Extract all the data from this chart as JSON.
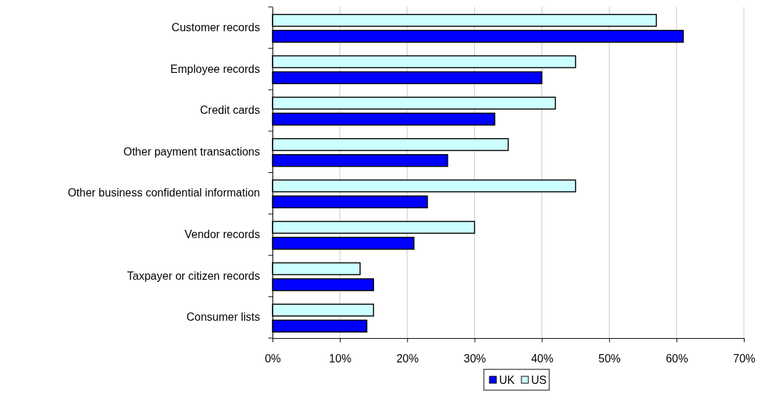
{
  "chart_data": {
    "type": "bar",
    "orientation": "horizontal",
    "categories": [
      "Customer records",
      "Employee records",
      "Credit cards",
      "Other payment transactions",
      "Other business confidential information",
      "Vendor records",
      "Taxpayer or citizen records",
      "Consumer lists"
    ],
    "series": [
      {
        "name": "UK",
        "color": "#0000ff",
        "values": [
          61,
          40,
          33,
          26,
          23,
          21,
          15,
          14
        ]
      },
      {
        "name": "US",
        "color": "#ccffff",
        "values": [
          57,
          45,
          42,
          35,
          45,
          30,
          13,
          15
        ]
      }
    ],
    "xlim": [
      0,
      70
    ],
    "xticks": [
      {
        "value": 0,
        "label": "0%"
      },
      {
        "value": 10,
        "label": "10%"
      },
      {
        "value": 20,
        "label": "20%"
      },
      {
        "value": 30,
        "label": "30%"
      },
      {
        "value": 40,
        "label": "40%"
      },
      {
        "value": 50,
        "label": "50%"
      },
      {
        "value": 60,
        "label": "60%"
      },
      {
        "value": 70,
        "label": "70%"
      }
    ],
    "grid": "x",
    "legend": "bottom"
  }
}
